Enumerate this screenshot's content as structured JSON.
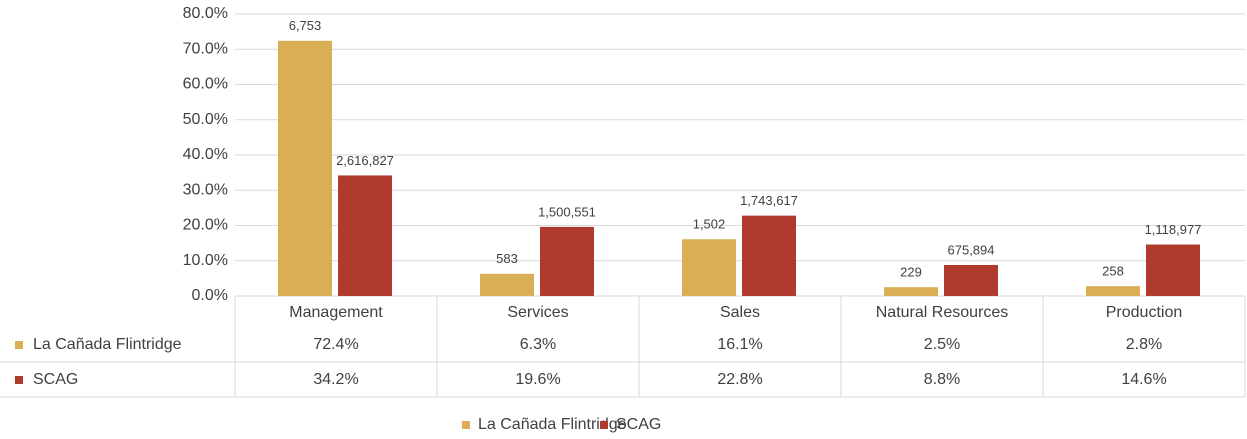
{
  "chart_data": {
    "type": "bar",
    "categories": [
      "Management",
      "Services",
      "Sales",
      "Natural Resources",
      "Production"
    ],
    "series": [
      {
        "name": "La Cañada Flintridge",
        "color": "#d9ae55",
        "values": [
          72.4,
          6.3,
          16.1,
          2.5,
          2.8
        ],
        "data_labels": [
          "6,753",
          "583",
          "1,502",
          "229",
          "258"
        ],
        "table_labels": [
          "72.4%",
          "6.3%",
          "16.1%",
          "2.5%",
          "2.8%"
        ]
      },
      {
        "name": "SCAG",
        "color": "#b03a2e",
        "values": [
          34.2,
          19.6,
          22.8,
          8.8,
          14.6
        ],
        "data_labels": [
          "2,616,827",
          "1,500,551",
          "1,743,617",
          "675,894",
          "1,118,977"
        ],
        "table_labels": [
          "34.2%",
          "19.6%",
          "22.8%",
          "8.8%",
          "14.6%"
        ]
      }
    ],
    "ylim": [
      0,
      80
    ],
    "yticks": [
      {
        "value": 0,
        "label": "0.0%"
      },
      {
        "value": 10,
        "label": "10.0%"
      },
      {
        "value": 20,
        "label": "20.0%"
      },
      {
        "value": 30,
        "label": "30.0%"
      },
      {
        "value": 40,
        "label": "40.0%"
      },
      {
        "value": 50,
        "label": "50.0%"
      },
      {
        "value": 60,
        "label": "60.0%"
      },
      {
        "value": 70,
        "label": "70.0%"
      },
      {
        "value": 80,
        "label": "80.0%"
      }
    ],
    "grid": true,
    "legend": "bottom"
  }
}
